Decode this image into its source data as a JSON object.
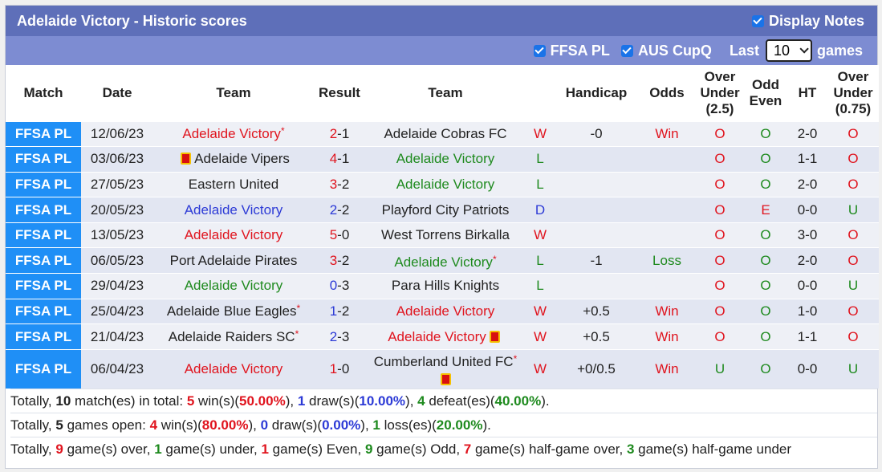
{
  "header": {
    "title": "Adelaide Victory - Historic scores",
    "display_notes_label": "Display Notes"
  },
  "filters": {
    "ffsa_label": "FFSA PL",
    "aus_label": "AUS CupQ",
    "last_label": "Last",
    "last_value": "10",
    "games_label": "games"
  },
  "columns": {
    "match": "Match",
    "date": "Date",
    "team_home": "Team",
    "result": "Result",
    "team_away": "Team",
    "handicap": "Handicap",
    "odds": "Odds",
    "over_under_25": [
      "Over",
      "Under",
      "(2.5)"
    ],
    "odd_even": [
      "Odd",
      "Even"
    ],
    "ht": "HT",
    "over_under_075": [
      "Over",
      "Under",
      "(0.75)"
    ]
  },
  "rows": [
    {
      "comp": "FFSA PL",
      "date": "12/06/23",
      "home": "Adelaide Victory",
      "home_color": "red",
      "home_star": true,
      "home_card": false,
      "res_h": "2",
      "res_a": "1",
      "res_color": "red",
      "away": "Adelaide Cobras FC",
      "away_color": "dark",
      "away_star": false,
      "away_card": false,
      "wl": "W",
      "wl_color": "red",
      "hcp": "-0",
      "odds": "Win",
      "odds_color": "red",
      "ou": "O",
      "ou_color": "red",
      "oe": "O",
      "oe_color": "green",
      "ht": "2-0",
      "ou2": "O",
      "ou2_color": "red"
    },
    {
      "comp": "FFSA PL",
      "date": "03/06/23",
      "home": "Adelaide Vipers",
      "home_color": "dark",
      "home_star": false,
      "home_card": true,
      "res_h": "4",
      "res_a": "1",
      "res_color": "red",
      "away": "Adelaide Victory",
      "away_color": "green",
      "away_star": false,
      "away_card": false,
      "wl": "L",
      "wl_color": "green",
      "hcp": "",
      "odds": "",
      "odds_color": "dark",
      "ou": "O",
      "ou_color": "red",
      "oe": "O",
      "oe_color": "green",
      "ht": "1-1",
      "ou2": "O",
      "ou2_color": "red"
    },
    {
      "comp": "FFSA PL",
      "date": "27/05/23",
      "home": "Eastern United",
      "home_color": "dark",
      "home_star": false,
      "home_card": false,
      "res_h": "3",
      "res_a": "2",
      "res_color": "red",
      "away": "Adelaide Victory",
      "away_color": "green",
      "away_star": false,
      "away_card": false,
      "wl": "L",
      "wl_color": "green",
      "hcp": "",
      "odds": "",
      "odds_color": "dark",
      "ou": "O",
      "ou_color": "red",
      "oe": "O",
      "oe_color": "green",
      "ht": "2-0",
      "ou2": "O",
      "ou2_color": "red"
    },
    {
      "comp": "FFSA PL",
      "date": "20/05/23",
      "home": "Adelaide Victory",
      "home_color": "blue",
      "home_star": false,
      "home_card": false,
      "res_h": "2",
      "res_a": "2",
      "res_color": "blue",
      "away": "Playford City Patriots",
      "away_color": "dark",
      "away_star": false,
      "away_card": false,
      "wl": "D",
      "wl_color": "blue",
      "hcp": "",
      "odds": "",
      "odds_color": "dark",
      "ou": "O",
      "ou_color": "red",
      "oe": "E",
      "oe_color": "red",
      "ht": "0-0",
      "ou2": "U",
      "ou2_color": "green"
    },
    {
      "comp": "FFSA PL",
      "date": "13/05/23",
      "home": "Adelaide Victory",
      "home_color": "red",
      "home_star": false,
      "home_card": false,
      "res_h": "5",
      "res_a": "0",
      "res_color": "red",
      "away": "West Torrens Birkalla",
      "away_color": "dark",
      "away_star": false,
      "away_card": false,
      "wl": "W",
      "wl_color": "red",
      "hcp": "",
      "odds": "",
      "odds_color": "dark",
      "ou": "O",
      "ou_color": "red",
      "oe": "O",
      "oe_color": "green",
      "ht": "3-0",
      "ou2": "O",
      "ou2_color": "red"
    },
    {
      "comp": "FFSA PL",
      "date": "06/05/23",
      "home": "Port Adelaide Pirates",
      "home_color": "dark",
      "home_star": false,
      "home_card": false,
      "res_h": "3",
      "res_a": "2",
      "res_color": "red",
      "away": "Adelaide Victory",
      "away_color": "green",
      "away_star": true,
      "away_card": false,
      "wl": "L",
      "wl_color": "green",
      "hcp": "-1",
      "odds": "Loss",
      "odds_color": "green",
      "ou": "O",
      "ou_color": "red",
      "oe": "O",
      "oe_color": "green",
      "ht": "2-0",
      "ou2": "O",
      "ou2_color": "red"
    },
    {
      "comp": "FFSA PL",
      "date": "29/04/23",
      "home": "Adelaide Victory",
      "home_color": "green",
      "home_star": false,
      "home_card": false,
      "res_h": "0",
      "res_a": "3",
      "res_color": "blue",
      "away": "Para Hills Knights",
      "away_color": "dark",
      "away_star": false,
      "away_card": false,
      "wl": "L",
      "wl_color": "green",
      "hcp": "",
      "odds": "",
      "odds_color": "dark",
      "ou": "O",
      "ou_color": "red",
      "oe": "O",
      "oe_color": "green",
      "ht": "0-0",
      "ou2": "U",
      "ou2_color": "green"
    },
    {
      "comp": "FFSA PL",
      "date": "25/04/23",
      "home": "Adelaide Blue Eagles",
      "home_color": "dark",
      "home_star": true,
      "home_card": false,
      "res_h": "1",
      "res_a": "2",
      "res_color": "blue",
      "away": "Adelaide Victory",
      "away_color": "red",
      "away_star": false,
      "away_card": false,
      "wl": "W",
      "wl_color": "red",
      "hcp": "+0.5",
      "odds": "Win",
      "odds_color": "red",
      "ou": "O",
      "ou_color": "red",
      "oe": "O",
      "oe_color": "green",
      "ht": "1-0",
      "ou2": "O",
      "ou2_color": "red"
    },
    {
      "comp": "FFSA PL",
      "date": "21/04/23",
      "home": "Adelaide Raiders SC",
      "home_color": "dark",
      "home_star": true,
      "home_card": false,
      "res_h": "2",
      "res_a": "3",
      "res_color": "blue",
      "away": "Adelaide Victory",
      "away_color": "red",
      "away_star": false,
      "away_card": true,
      "wl": "W",
      "wl_color": "red",
      "hcp": "+0.5",
      "odds": "Win",
      "odds_color": "red",
      "ou": "O",
      "ou_color": "red",
      "oe": "O",
      "oe_color": "green",
      "ht": "1-1",
      "ou2": "O",
      "ou2_color": "red"
    },
    {
      "comp": "FFSA PL",
      "date": "06/04/23",
      "home": "Adelaide Victory",
      "home_color": "red",
      "home_star": false,
      "home_card": false,
      "res_h": "1",
      "res_a": "0",
      "res_color": "red",
      "away": "Cumberland United FC",
      "away_color": "dark",
      "away_star": true,
      "away_card": true,
      "wl": "W",
      "wl_color": "red",
      "hcp": "+0/0.5",
      "odds": "Win",
      "odds_color": "red",
      "ou": "U",
      "ou_color": "green",
      "oe": "O",
      "oe_color": "green",
      "ht": "0-0",
      "ou2": "U",
      "ou2_color": "green"
    }
  ],
  "summary": [
    [
      {
        "t": "Totally, ",
        "c": "dark",
        "b": false
      },
      {
        "t": "10",
        "c": "dark",
        "b": true
      },
      {
        "t": " match(es) in total: ",
        "c": "dark",
        "b": false
      },
      {
        "t": "5",
        "c": "red",
        "b": true
      },
      {
        "t": " win(s)(",
        "c": "dark",
        "b": false
      },
      {
        "t": "50.00%",
        "c": "red",
        "b": true
      },
      {
        "t": "), ",
        "c": "dark",
        "b": false
      },
      {
        "t": "1",
        "c": "blue",
        "b": true
      },
      {
        "t": " draw(s)(",
        "c": "dark",
        "b": false
      },
      {
        "t": "10.00%",
        "c": "blue",
        "b": true
      },
      {
        "t": "), ",
        "c": "dark",
        "b": false
      },
      {
        "t": "4",
        "c": "green",
        "b": true
      },
      {
        "t": " defeat(es)(",
        "c": "dark",
        "b": false
      },
      {
        "t": "40.00%",
        "c": "green",
        "b": true
      },
      {
        "t": ").",
        "c": "dark",
        "b": false
      }
    ],
    [
      {
        "t": "Totally, ",
        "c": "dark",
        "b": false
      },
      {
        "t": "5",
        "c": "dark",
        "b": true
      },
      {
        "t": " games open: ",
        "c": "dark",
        "b": false
      },
      {
        "t": "4",
        "c": "red",
        "b": true
      },
      {
        "t": " win(s)(",
        "c": "dark",
        "b": false
      },
      {
        "t": "80.00%",
        "c": "red",
        "b": true
      },
      {
        "t": "), ",
        "c": "dark",
        "b": false
      },
      {
        "t": "0",
        "c": "blue",
        "b": true
      },
      {
        "t": " draw(s)(",
        "c": "dark",
        "b": false
      },
      {
        "t": "0.00%",
        "c": "blue",
        "b": true
      },
      {
        "t": "), ",
        "c": "dark",
        "b": false
      },
      {
        "t": "1",
        "c": "green",
        "b": true
      },
      {
        "t": " loss(es)(",
        "c": "dark",
        "b": false
      },
      {
        "t": "20.00%",
        "c": "green",
        "b": true
      },
      {
        "t": ").",
        "c": "dark",
        "b": false
      }
    ],
    [
      {
        "t": "Totally, ",
        "c": "dark",
        "b": false
      },
      {
        "t": "9",
        "c": "red",
        "b": true
      },
      {
        "t": " game(s) over, ",
        "c": "dark",
        "b": false
      },
      {
        "t": "1",
        "c": "green",
        "b": true
      },
      {
        "t": " game(s) under, ",
        "c": "dark",
        "b": false
      },
      {
        "t": "1",
        "c": "red",
        "b": true
      },
      {
        "t": " game(s) Even, ",
        "c": "dark",
        "b": false
      },
      {
        "t": "9",
        "c": "green",
        "b": true
      },
      {
        "t": " game(s) Odd, ",
        "c": "dark",
        "b": false
      },
      {
        "t": "7",
        "c": "red",
        "b": true
      },
      {
        "t": " game(s) half-game over, ",
        "c": "dark",
        "b": false
      },
      {
        "t": "3",
        "c": "green",
        "b": true
      },
      {
        "t": " game(s) half-game under",
        "c": "dark",
        "b": false
      }
    ]
  ]
}
